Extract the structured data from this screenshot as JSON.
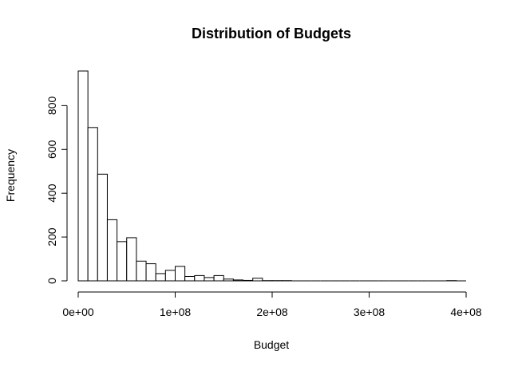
{
  "chart_data": {
    "type": "bar",
    "title": "Distribution of Budgets",
    "xlabel": "Budget",
    "ylabel": "Frequency",
    "bin_width": 10000000,
    "x_start": 0,
    "bins": [
      {
        "start": 0,
        "end": 10000000,
        "count": 958
      },
      {
        "start": 10000000,
        "end": 20000000,
        "count": 700
      },
      {
        "start": 20000000,
        "end": 30000000,
        "count": 487
      },
      {
        "start": 30000000,
        "end": 40000000,
        "count": 279
      },
      {
        "start": 40000000,
        "end": 50000000,
        "count": 179
      },
      {
        "start": 50000000,
        "end": 60000000,
        "count": 197
      },
      {
        "start": 60000000,
        "end": 70000000,
        "count": 90
      },
      {
        "start": 70000000,
        "end": 80000000,
        "count": 78
      },
      {
        "start": 80000000,
        "end": 90000000,
        "count": 33
      },
      {
        "start": 90000000,
        "end": 100000000,
        "count": 48
      },
      {
        "start": 100000000,
        "end": 110000000,
        "count": 66
      },
      {
        "start": 110000000,
        "end": 120000000,
        "count": 20
      },
      {
        "start": 120000000,
        "end": 130000000,
        "count": 24
      },
      {
        "start": 130000000,
        "end": 140000000,
        "count": 15
      },
      {
        "start": 140000000,
        "end": 150000000,
        "count": 24
      },
      {
        "start": 150000000,
        "end": 160000000,
        "count": 8
      },
      {
        "start": 160000000,
        "end": 170000000,
        "count": 4
      },
      {
        "start": 170000000,
        "end": 180000000,
        "count": 2
      },
      {
        "start": 180000000,
        "end": 190000000,
        "count": 12
      },
      {
        "start": 190000000,
        "end": 200000000,
        "count": 1
      },
      {
        "start": 200000000,
        "end": 210000000,
        "count": 1
      },
      {
        "start": 210000000,
        "end": 220000000,
        "count": 1
      },
      {
        "start": 220000000,
        "end": 230000000,
        "count": 0
      },
      {
        "start": 230000000,
        "end": 240000000,
        "count": 0
      },
      {
        "start": 240000000,
        "end": 250000000,
        "count": 0
      },
      {
        "start": 250000000,
        "end": 260000000,
        "count": 0
      },
      {
        "start": 260000000,
        "end": 270000000,
        "count": 0
      },
      {
        "start": 270000000,
        "end": 280000000,
        "count": 0
      },
      {
        "start": 280000000,
        "end": 290000000,
        "count": 0
      },
      {
        "start": 290000000,
        "end": 300000000,
        "count": 0
      },
      {
        "start": 300000000,
        "end": 310000000,
        "count": 0
      },
      {
        "start": 310000000,
        "end": 320000000,
        "count": 0
      },
      {
        "start": 320000000,
        "end": 330000000,
        "count": 0
      },
      {
        "start": 330000000,
        "end": 340000000,
        "count": 0
      },
      {
        "start": 340000000,
        "end": 350000000,
        "count": 0
      },
      {
        "start": 350000000,
        "end": 360000000,
        "count": 0
      },
      {
        "start": 360000000,
        "end": 370000000,
        "count": 0
      },
      {
        "start": 370000000,
        "end": 380000000,
        "count": 0
      },
      {
        "start": 380000000,
        "end": 390000000,
        "count": 1
      },
      {
        "start": 390000000,
        "end": 400000000,
        "count": 0
      }
    ],
    "x_ticks": [
      {
        "value": 0,
        "label": "0e+00"
      },
      {
        "value": 100000000,
        "label": "1e+08"
      },
      {
        "value": 200000000,
        "label": "2e+08"
      },
      {
        "value": 300000000,
        "label": "3e+08"
      },
      {
        "value": 400000000,
        "label": "4e+08"
      }
    ],
    "y_ticks": [
      {
        "value": 0,
        "label": "0"
      },
      {
        "value": 200,
        "label": "200"
      },
      {
        "value": 400,
        "label": "400"
      },
      {
        "value": 600,
        "label": "600"
      },
      {
        "value": 800,
        "label": "800"
      }
    ],
    "xlim": [
      0,
      400000000
    ],
    "ylim": [
      0,
      958
    ],
    "grid": false,
    "legend": "none",
    "bar_fill": "#ffffff",
    "bar_stroke": "#000000"
  }
}
